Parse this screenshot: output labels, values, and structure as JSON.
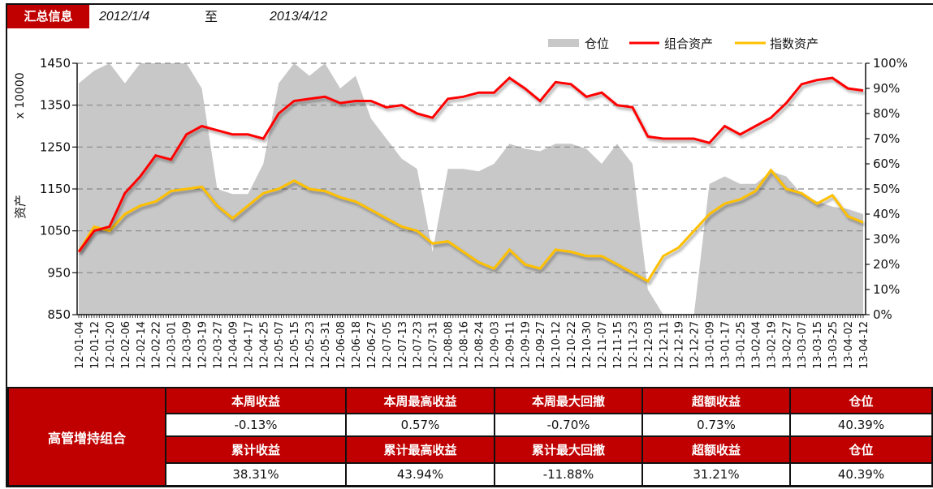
{
  "header": {
    "title": "汇总信息",
    "start_date": "2012/1/4",
    "to_label": "至",
    "end_date": "2013/4/12"
  },
  "chart_data": {
    "type": "line",
    "ylabel": "资产",
    "ylabel_unit": "x 10000",
    "ylim": [
      850,
      1450
    ],
    "y_ticks": [
      "850",
      "950",
      "1050",
      "1150",
      "1250",
      "1350",
      "1450"
    ],
    "y2lim": [
      0,
      100
    ],
    "y2_ticks": [
      "0%",
      "10%",
      "20%",
      "30%",
      "40%",
      "50%",
      "60%",
      "70%",
      "80%",
      "90%",
      "100%"
    ],
    "grid": "horizontal dashed",
    "legend_position": "top-right",
    "colors": {
      "position": "#c8c8c8",
      "portfolio": "#ff0000",
      "index": "#ffc000"
    },
    "categories": [
      "12-01-04",
      "12-01-12",
      "12-01-20",
      "12-02-06",
      "12-02-14",
      "12-02-22",
      "12-03-01",
      "12-03-09",
      "12-03-19",
      "12-03-27",
      "12-04-09",
      "12-04-17",
      "12-04-25",
      "12-05-07",
      "12-05-15",
      "12-05-23",
      "12-05-31",
      "12-06-08",
      "12-06-18",
      "12-06-27",
      "12-07-05",
      "12-07-13",
      "12-07-23",
      "12-07-31",
      "12-08-08",
      "12-08-16",
      "12-08-24",
      "12-09-03",
      "12-09-11",
      "12-09-19",
      "12-09-27",
      "12-10-12",
      "12-10-22",
      "12-10-30",
      "12-11-07",
      "12-11-15",
      "12-11-23",
      "12-12-03",
      "12-12-11",
      "12-12-19",
      "12-12-27",
      "13-01-09",
      "13-01-17",
      "13-01-25",
      "13-02-04",
      "13-02-19",
      "13-02-27",
      "13-03-07",
      "13-03-15",
      "13-03-25",
      "13-04-02",
      "13-04-12"
    ],
    "series": [
      {
        "name": "仓位",
        "type": "area",
        "axis": "right",
        "values": [
          92,
          97,
          100,
          92,
          100,
          100,
          100,
          100,
          90,
          50,
          48,
          48,
          60,
          92,
          100,
          95,
          100,
          90,
          95,
          78,
          70,
          62,
          58,
          25,
          58,
          58,
          57,
          60,
          68,
          66,
          65,
          68,
          68,
          66,
          60,
          68,
          60,
          10,
          0,
          0,
          0,
          52,
          55,
          52,
          52,
          57,
          55,
          48,
          45,
          43,
          42,
          40
        ]
      },
      {
        "name": "组合资产",
        "type": "line",
        "axis": "left",
        "values": [
          1000,
          1050,
          1060,
          1140,
          1180,
          1230,
          1220,
          1280,
          1300,
          1290,
          1280,
          1280,
          1270,
          1330,
          1360,
          1365,
          1370,
          1355,
          1360,
          1360,
          1345,
          1350,
          1330,
          1320,
          1365,
          1370,
          1380,
          1380,
          1415,
          1390,
          1360,
          1405,
          1400,
          1370,
          1380,
          1350,
          1345,
          1275,
          1270,
          1270,
          1270,
          1260,
          1300,
          1280,
          1300,
          1320,
          1355,
          1400,
          1410,
          1415,
          1390,
          1385
        ]
      },
      {
        "name": "指数资产",
        "type": "line",
        "axis": "left",
        "values": [
          1000,
          1060,
          1050,
          1090,
          1110,
          1120,
          1145,
          1150,
          1155,
          1110,
          1080,
          1110,
          1140,
          1150,
          1170,
          1150,
          1145,
          1130,
          1120,
          1100,
          1080,
          1060,
          1050,
          1020,
          1025,
          1000,
          975,
          960,
          1005,
          970,
          960,
          1005,
          1000,
          990,
          990,
          970,
          950,
          930,
          990,
          1010,
          1050,
          1090,
          1115,
          1125,
          1145,
          1195,
          1150,
          1140,
          1115,
          1135,
          1085,
          1070
        ]
      }
    ]
  },
  "table": {
    "portfolio_name": "高管增持组合",
    "weekly_headers": [
      "本周收益",
      "本周最高收益",
      "本周最大回撤",
      "超额收益",
      "仓位"
    ],
    "weekly_values": [
      "-0.13%",
      "0.57%",
      "-0.70%",
      "0.73%",
      "40.39%"
    ],
    "cumulative_headers": [
      "累计收益",
      "累计最高收益",
      "累计最大回撤",
      "超额收益",
      "仓位"
    ],
    "cumulative_values": [
      "38.31%",
      "43.94%",
      "-11.88%",
      "31.21%",
      "40.39%"
    ]
  }
}
